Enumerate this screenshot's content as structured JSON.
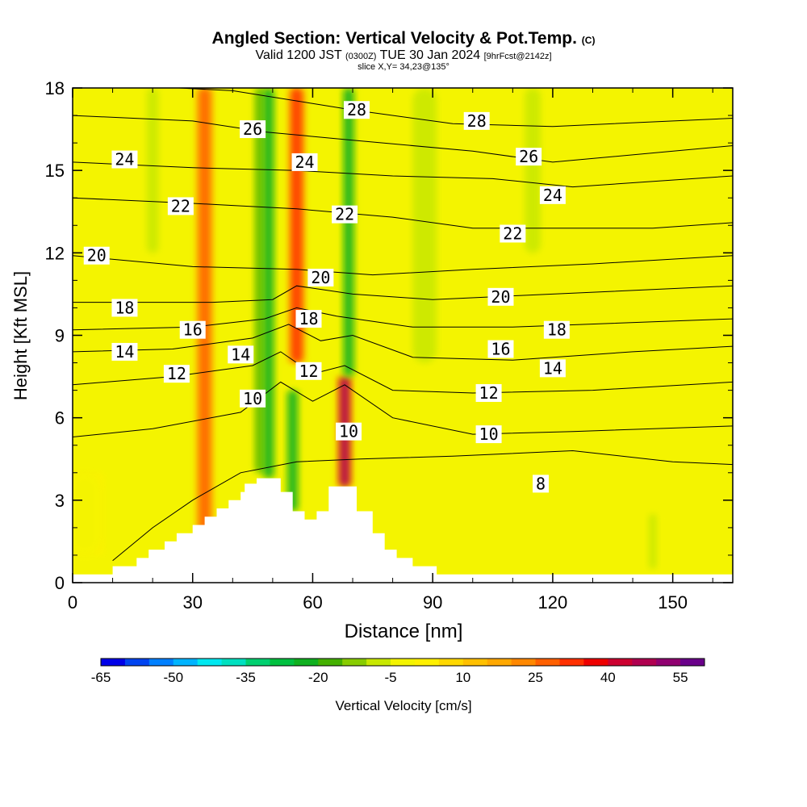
{
  "header": {
    "title": "Angled Section: Vertical Velocity & Pot.Temp.",
    "title_suffix": "(C)",
    "valid_prefix": "Valid 1200 JST",
    "valid_utc": "(0300Z)",
    "valid_date": "TUE 30 Jan 2024",
    "forecast": "[9hrFcst@2142z]",
    "slice": "slice X,Y= 34,23@135°"
  },
  "colors": {
    "background_field": "#f4f400",
    "terrain": "#ffffff",
    "contour": "#000000"
  },
  "chart_data": {
    "type": "heatmap",
    "xlabel": "Distance [nm]",
    "ylabel": "Height [Kft MSL]",
    "xlim": [
      0,
      165
    ],
    "ylim": [
      0,
      18
    ],
    "xticks": [
      0,
      30,
      60,
      90,
      120,
      150
    ],
    "yticks": [
      0,
      3,
      6,
      9,
      12,
      15,
      18
    ],
    "terrain_profile": [
      {
        "x": 0,
        "y": 0.3
      },
      {
        "x": 10,
        "y": 0.3
      },
      {
        "x": 10,
        "y": 0.6
      },
      {
        "x": 16,
        "y": 0.6
      },
      {
        "x": 16,
        "y": 0.9
      },
      {
        "x": 19,
        "y": 0.9
      },
      {
        "x": 19,
        "y": 1.2
      },
      {
        "x": 23,
        "y": 1.2
      },
      {
        "x": 23,
        "y": 1.5
      },
      {
        "x": 26,
        "y": 1.5
      },
      {
        "x": 26,
        "y": 1.8
      },
      {
        "x": 30,
        "y": 1.8
      },
      {
        "x": 30,
        "y": 2.1
      },
      {
        "x": 33,
        "y": 2.1
      },
      {
        "x": 33,
        "y": 2.4
      },
      {
        "x": 36,
        "y": 2.4
      },
      {
        "x": 36,
        "y": 2.7
      },
      {
        "x": 39,
        "y": 2.7
      },
      {
        "x": 39,
        "y": 3.0
      },
      {
        "x": 42,
        "y": 3.0
      },
      {
        "x": 42,
        "y": 3.3
      },
      {
        "x": 43,
        "y": 3.3
      },
      {
        "x": 43,
        "y": 3.6
      },
      {
        "x": 46,
        "y": 3.6
      },
      {
        "x": 46,
        "y": 3.8
      },
      {
        "x": 52,
        "y": 3.8
      },
      {
        "x": 52,
        "y": 3.3
      },
      {
        "x": 55,
        "y": 3.3
      },
      {
        "x": 55,
        "y": 2.6
      },
      {
        "x": 58,
        "y": 2.6
      },
      {
        "x": 58,
        "y": 2.3
      },
      {
        "x": 61,
        "y": 2.3
      },
      {
        "x": 61,
        "y": 2.6
      },
      {
        "x": 64,
        "y": 2.6
      },
      {
        "x": 64,
        "y": 3.5
      },
      {
        "x": 71,
        "y": 3.5
      },
      {
        "x": 71,
        "y": 2.6
      },
      {
        "x": 75,
        "y": 2.6
      },
      {
        "x": 75,
        "y": 1.8
      },
      {
        "x": 78,
        "y": 1.8
      },
      {
        "x": 78,
        "y": 1.2
      },
      {
        "x": 81,
        "y": 1.2
      },
      {
        "x": 81,
        "y": 0.9
      },
      {
        "x": 85,
        "y": 0.9
      },
      {
        "x": 85,
        "y": 0.6
      },
      {
        "x": 91,
        "y": 0.6
      },
      {
        "x": 91,
        "y": 0.3
      },
      {
        "x": 165,
        "y": 0.3
      }
    ],
    "velocity_features": [
      {
        "x": 33,
        "y0": 0.4,
        "y1": 18,
        "w": 3,
        "value": 25
      },
      {
        "x": 47,
        "y0": 4,
        "y1": 18,
        "w": 2.5,
        "value": -20
      },
      {
        "x": 49,
        "y0": 3.8,
        "y1": 18,
        "w": 2.5,
        "value": -25
      },
      {
        "x": 56,
        "y0": 8,
        "y1": 18,
        "w": 3,
        "value": 30
      },
      {
        "x": 55,
        "y0": 2.6,
        "y1": 7,
        "w": 2.5,
        "value": -25
      },
      {
        "x": 68,
        "y0": 3.5,
        "y1": 7.5,
        "w": 2.5,
        "value": 45
      },
      {
        "x": 69,
        "y0": 7.5,
        "y1": 18,
        "w": 2.5,
        "value": -25
      },
      {
        "x": 20,
        "y0": 12,
        "y1": 18,
        "w": 3,
        "value": -10
      },
      {
        "x": 88,
        "y0": 8,
        "y1": 18,
        "w": 6,
        "value": -10
      },
      {
        "x": 115,
        "y0": 12,
        "y1": 18,
        "w": 4,
        "value": -10
      },
      {
        "x": 3,
        "y0": 1,
        "y1": 4,
        "w": 8,
        "value": -5
      },
      {
        "x": 145,
        "y0": 0.5,
        "y1": 2.5,
        "w": 2,
        "value": -10
      }
    ],
    "isentropes": [
      {
        "value": 8,
        "points": [
          [
            10,
            0.8
          ],
          [
            20,
            2.0
          ],
          [
            30,
            3.0
          ],
          [
            42,
            4.0
          ],
          [
            56,
            4.4
          ],
          [
            72,
            4.5
          ],
          [
            95,
            4.6
          ],
          [
            125,
            4.8
          ],
          [
            150,
            4.4
          ],
          [
            165,
            4.3
          ]
        ]
      },
      {
        "value": 10,
        "points": [
          [
            0,
            5.3
          ],
          [
            20,
            5.6
          ],
          [
            42,
            6.2
          ],
          [
            52,
            7.3
          ],
          [
            60,
            6.6
          ],
          [
            68,
            7.2
          ],
          [
            80,
            6.0
          ],
          [
            100,
            5.4
          ],
          [
            125,
            5.5
          ],
          [
            165,
            5.7
          ]
        ]
      },
      {
        "value": 12,
        "points": [
          [
            0,
            7.2
          ],
          [
            25,
            7.5
          ],
          [
            45,
            7.9
          ],
          [
            52,
            8.4
          ],
          [
            60,
            7.6
          ],
          [
            68,
            7.9
          ],
          [
            80,
            7.0
          ],
          [
            100,
            6.9
          ],
          [
            130,
            7.0
          ],
          [
            165,
            7.3
          ]
        ]
      },
      {
        "value": 14,
        "points": [
          [
            0,
            8.4
          ],
          [
            25,
            8.5
          ],
          [
            45,
            8.9
          ],
          [
            54,
            9.4
          ],
          [
            62,
            8.8
          ],
          [
            70,
            9.0
          ],
          [
            85,
            8.2
          ],
          [
            110,
            8.1
          ],
          [
            140,
            8.4
          ],
          [
            165,
            8.6
          ]
        ]
      },
      {
        "value": 16,
        "points": [
          [
            0,
            9.2
          ],
          [
            30,
            9.3
          ],
          [
            48,
            9.6
          ],
          [
            56,
            10.0
          ],
          [
            66,
            9.7
          ],
          [
            85,
            9.3
          ],
          [
            110,
            9.3
          ],
          [
            165,
            9.6
          ]
        ]
      },
      {
        "value": 18,
        "points": [
          [
            0,
            10.2
          ],
          [
            35,
            10.2
          ],
          [
            50,
            10.3
          ],
          [
            56,
            10.8
          ],
          [
            70,
            10.5
          ],
          [
            90,
            10.3
          ],
          [
            120,
            10.5
          ],
          [
            165,
            10.8
          ]
        ]
      },
      {
        "value": 20,
        "points": [
          [
            0,
            11.9
          ],
          [
            30,
            11.5
          ],
          [
            56,
            11.4
          ],
          [
            75,
            11.2
          ],
          [
            100,
            11.4
          ],
          [
            130,
            11.6
          ],
          [
            165,
            11.9
          ]
        ]
      },
      {
        "value": 22,
        "points": [
          [
            0,
            14.0
          ],
          [
            30,
            13.8
          ],
          [
            56,
            13.6
          ],
          [
            80,
            13.3
          ],
          [
            100,
            12.9
          ],
          [
            125,
            12.9
          ],
          [
            145,
            12.9
          ],
          [
            165,
            13.1
          ]
        ]
      },
      {
        "value": 24,
        "points": [
          [
            0,
            15.3
          ],
          [
            30,
            15.1
          ],
          [
            56,
            15.0
          ],
          [
            80,
            14.8
          ],
          [
            105,
            14.7
          ],
          [
            125,
            14.4
          ],
          [
            165,
            14.8
          ]
        ]
      },
      {
        "value": 26,
        "points": [
          [
            0,
            17.0
          ],
          [
            30,
            16.8
          ],
          [
            48,
            16.4
          ],
          [
            70,
            16.1
          ],
          [
            100,
            15.7
          ],
          [
            120,
            15.3
          ],
          [
            165,
            15.9
          ]
        ]
      },
      {
        "value": 28,
        "points": [
          [
            0,
            18.2
          ],
          [
            40,
            17.9
          ],
          [
            70,
            17.2
          ],
          [
            95,
            16.7
          ],
          [
            120,
            16.6
          ],
          [
            165,
            16.9
          ]
        ]
      }
    ],
    "contour_labels": [
      {
        "text": "24",
        "x": 13,
        "y": 15.4
      },
      {
        "text": "22",
        "x": 27,
        "y": 13.7
      },
      {
        "text": "20",
        "x": 6,
        "y": 11.9
      },
      {
        "text": "18",
        "x": 13,
        "y": 10.0
      },
      {
        "text": "16",
        "x": 30,
        "y": 9.2
      },
      {
        "text": "14",
        "x": 13,
        "y": 8.4
      },
      {
        "text": "12",
        "x": 26,
        "y": 7.6
      },
      {
        "text": "14",
        "x": 42,
        "y": 8.3
      },
      {
        "text": "10",
        "x": 45,
        "y": 6.7
      },
      {
        "text": "26",
        "x": 45,
        "y": 16.5
      },
      {
        "text": "24",
        "x": 58,
        "y": 15.3
      },
      {
        "text": "20",
        "x": 62,
        "y": 11.1
      },
      {
        "text": "18",
        "x": 59,
        "y": 9.6
      },
      {
        "text": "12",
        "x": 59,
        "y": 7.7
      },
      {
        "text": "22",
        "x": 68,
        "y": 13.4
      },
      {
        "text": "28",
        "x": 71,
        "y": 17.2
      },
      {
        "text": "10",
        "x": 69,
        "y": 5.5
      },
      {
        "text": "28",
        "x": 101,
        "y": 16.8
      },
      {
        "text": "26",
        "x": 114,
        "y": 15.5
      },
      {
        "text": "24",
        "x": 120,
        "y": 14.1
      },
      {
        "text": "22",
        "x": 110,
        "y": 12.7
      },
      {
        "text": "20",
        "x": 107,
        "y": 10.4
      },
      {
        "text": "18",
        "x": 121,
        "y": 9.2
      },
      {
        "text": "16",
        "x": 107,
        "y": 8.5
      },
      {
        "text": "14",
        "x": 120,
        "y": 7.8
      },
      {
        "text": "12",
        "x": 104,
        "y": 6.9
      },
      {
        "text": "10",
        "x": 104,
        "y": 5.4
      },
      {
        "text": "8",
        "x": 117,
        "y": 3.6
      }
    ],
    "colorbar": {
      "label": "Vertical Velocity [cm/s]",
      "tick_labels": [
        "-65",
        "-50",
        "-35",
        "-20",
        "-5",
        "10",
        "25",
        "40",
        "55"
      ],
      "colors": [
        "#0000e8",
        "#0044f0",
        "#0080ff",
        "#00b4ff",
        "#00e8f0",
        "#00e0c0",
        "#00d070",
        "#00c040",
        "#10b020",
        "#44b000",
        "#88cc00",
        "#c8e800",
        "#f4f400",
        "#fff000",
        "#ffd800",
        "#ffc000",
        "#ffa800",
        "#ff8800",
        "#ff6000",
        "#ff3000",
        "#ee0000",
        "#cc0030",
        "#b00050",
        "#900070",
        "#6a008a"
      ]
    }
  }
}
